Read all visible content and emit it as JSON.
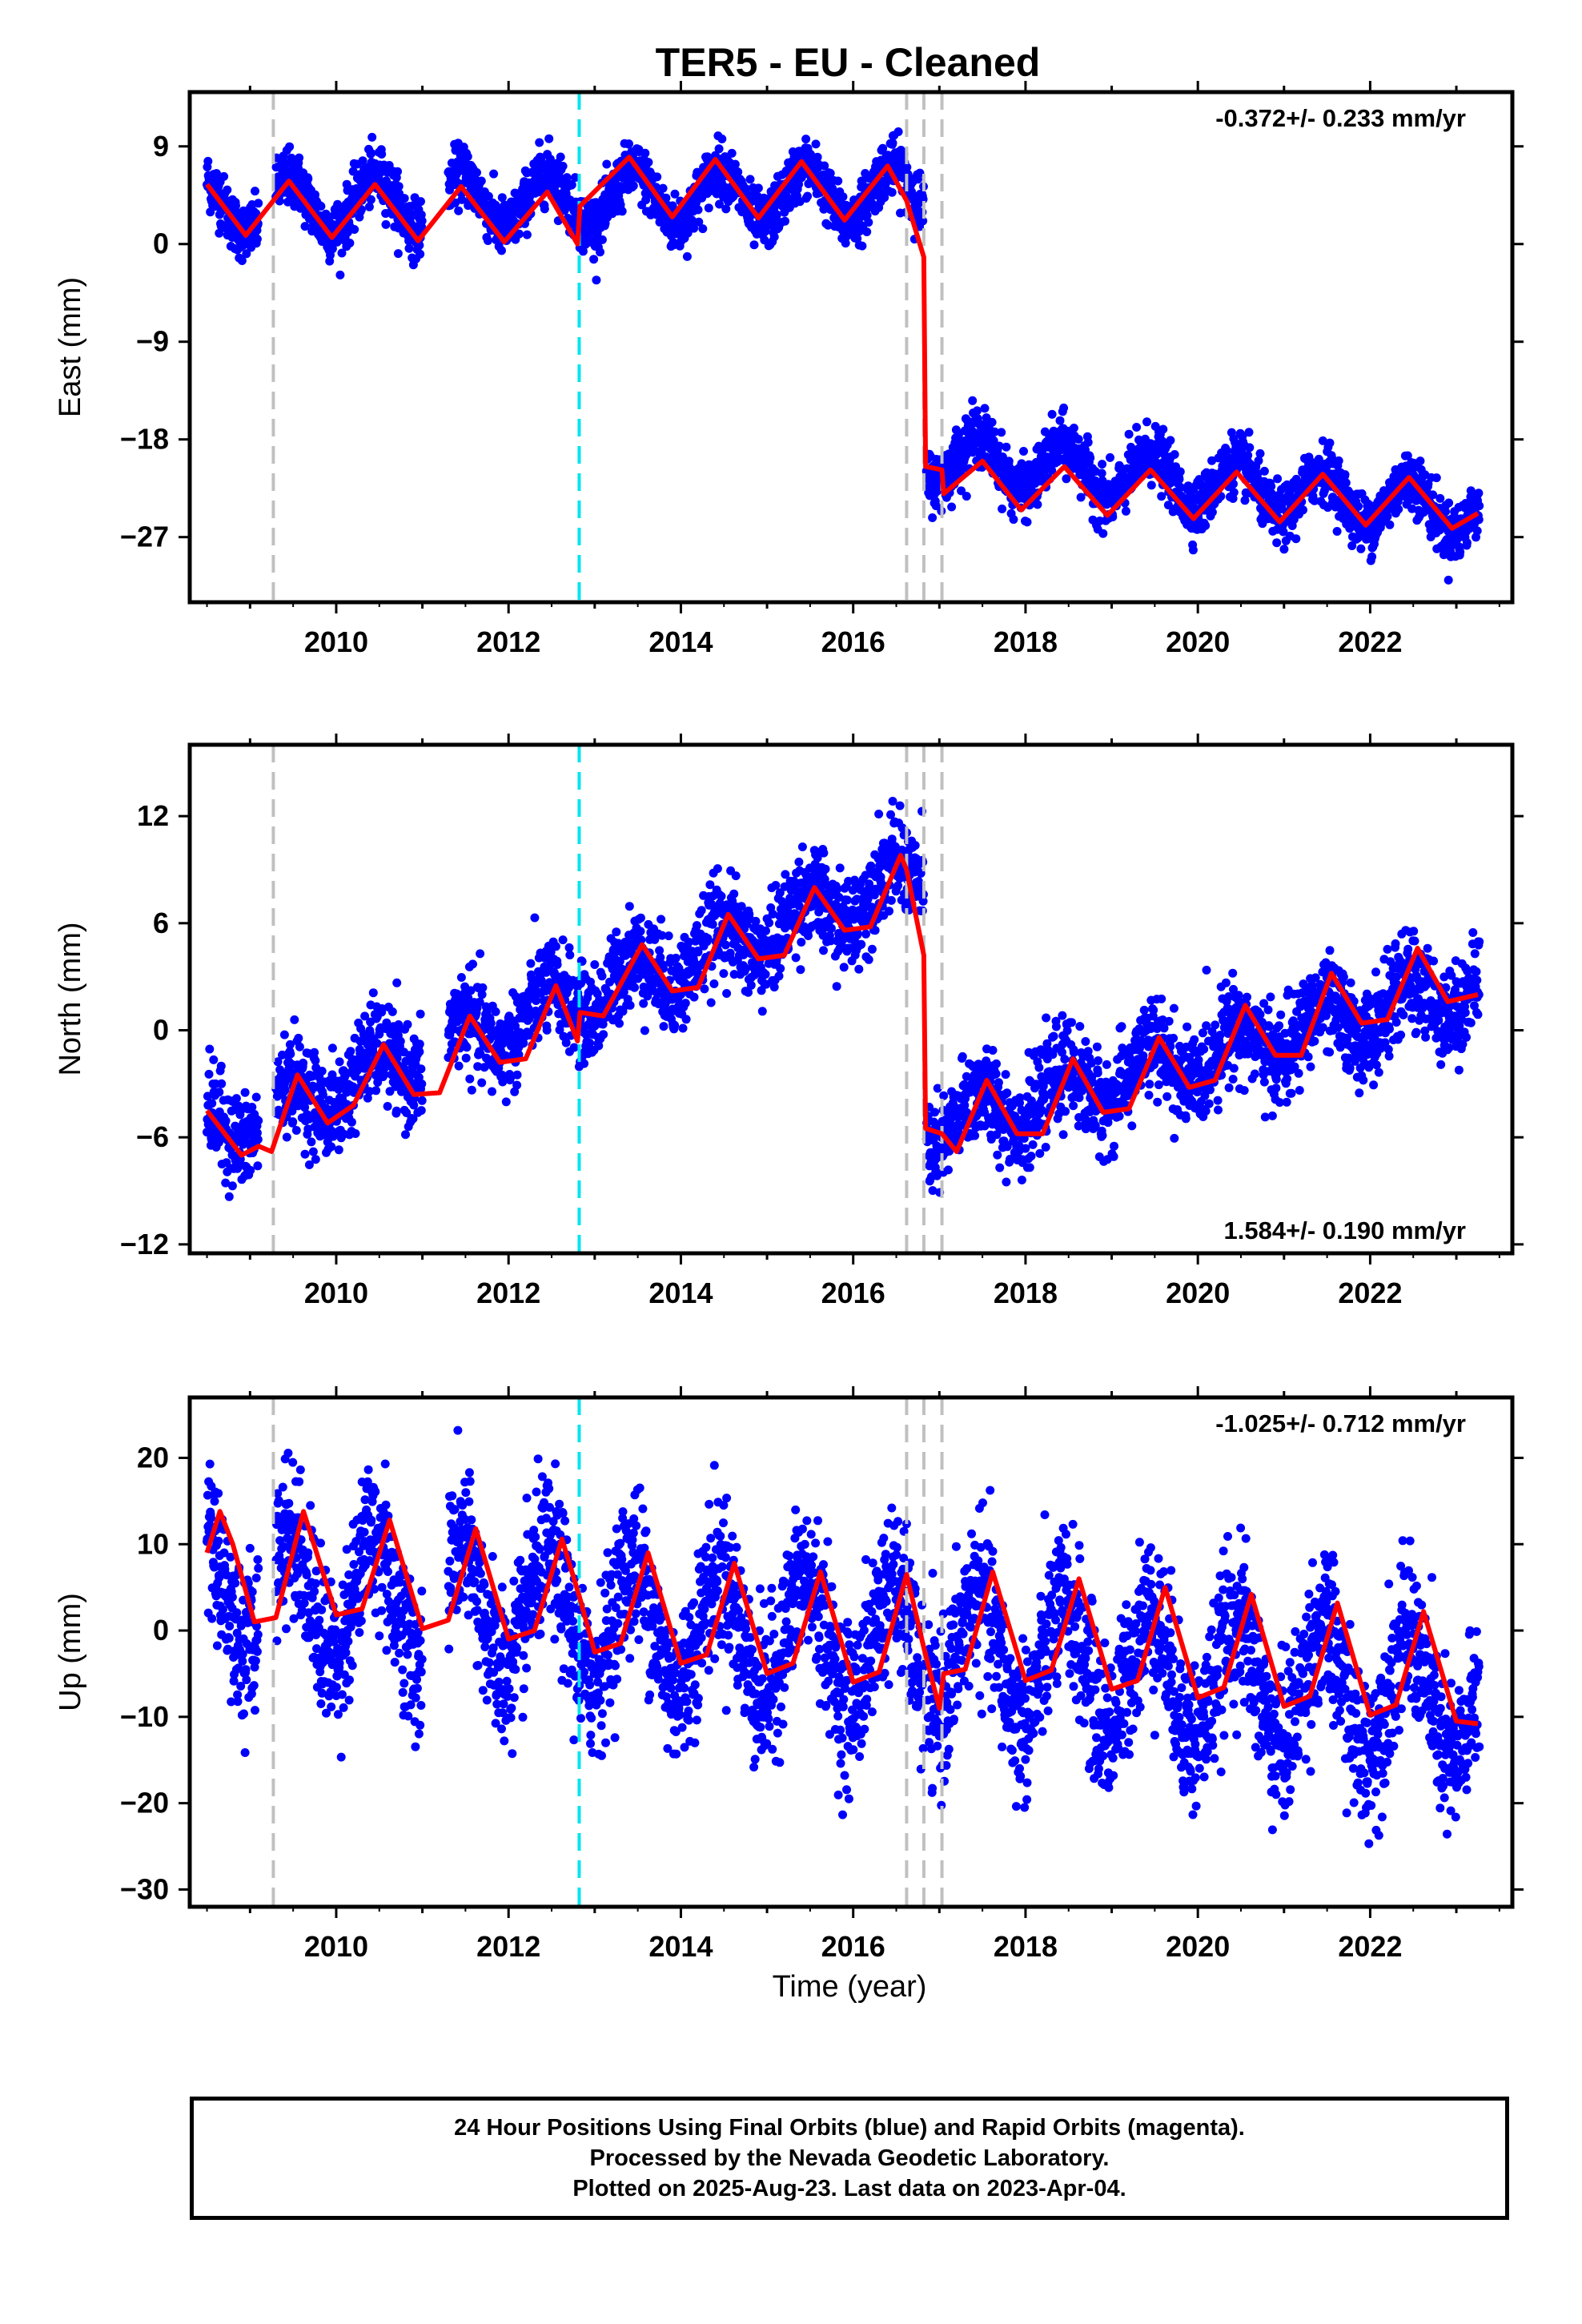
{
  "title": "TER5  - EU - Cleaned",
  "xlabel": "Time (year)",
  "footer": {
    "line1": "24 Hour Positions Using Final Orbits (blue) and Rapid Orbits (magenta).",
    "line2": "Processed by the Nevada Geodetic Laboratory.",
    "line3": "Plotted on 2025-Aug-23. Last data on 2023-Apr-04."
  },
  "colors": {
    "points": "#0000ff",
    "model": "#ff0000",
    "equipment_change": "#c0c0c0",
    "earthquake": "#00e5ee"
  },
  "chart_data": [
    {
      "type": "scatter",
      "ylabel": "East (mm)",
      "rate": "-0.372+/- 0.233 mm/yr",
      "rate_position": "top-right",
      "xlim": [
        2008.3,
        2023.65
      ],
      "ylim": [
        -33,
        14
      ],
      "xticks": [
        2010,
        2012,
        2014,
        2016,
        2018,
        2020,
        2022
      ],
      "yticks": [
        9,
        0,
        -9,
        -18,
        -27
      ],
      "ytick_labels": [
        "9",
        "0",
        "−9",
        "−18",
        "−27"
      ],
      "vlines_gray": [
        2009.27,
        2016.62,
        2016.82,
        2017.03
      ],
      "vlines_cyan": [
        2012.82
      ],
      "series": [
        {
          "segments": [
            [
              2008.5,
              2009.1
            ],
            [
              2009.3,
              2011.0
            ],
            [
              2011.3,
              2016.82
            ]
          ],
          "level_start": 3.5,
          "slope": 0.15,
          "amplitude": 2.5,
          "noise": 1.3
        },
        {
          "segments": [
            [
              2016.85,
              2023.27
            ]
          ],
          "level_start": -19.5,
          "slope": -0.8,
          "amplitude": 2.3,
          "noise": 1.3
        }
      ],
      "model": [
        {
          "x": 2008.5,
          "y": 5.5
        },
        {
          "x": 2008.95,
          "y": 0.8
        },
        {
          "x": 2009.45,
          "y": 5.8
        },
        {
          "x": 2009.95,
          "y": 0.6
        },
        {
          "x": 2010.45,
          "y": 5.5
        },
        {
          "x": 2010.95,
          "y": 0.3
        },
        {
          "x": 2011.45,
          "y": 5.3
        },
        {
          "x": 2011.95,
          "y": 0.2
        },
        {
          "x": 2012.45,
          "y": 4.8
        },
        {
          "x": 2012.8,
          "y": 0.0
        },
        {
          "x": 2012.83,
          "y": 3.5
        },
        {
          "x": 2013.4,
          "y": 8.0
        },
        {
          "x": 2013.9,
          "y": 2.5
        },
        {
          "x": 2014.4,
          "y": 7.8
        },
        {
          "x": 2014.9,
          "y": 2.4
        },
        {
          "x": 2015.4,
          "y": 7.6
        },
        {
          "x": 2015.9,
          "y": 2.2
        },
        {
          "x": 2016.4,
          "y": 7.2
        },
        {
          "x": 2016.62,
          "y": 4.0
        },
        {
          "x": 2016.82,
          "y": -1.2
        },
        {
          "x": 2016.84,
          "y": -20.5
        },
        {
          "x": 2017.03,
          "y": -20.8
        },
        {
          "x": 2017.05,
          "y": -23.0
        },
        {
          "x": 2017.5,
          "y": -20.0
        },
        {
          "x": 2017.95,
          "y": -24.5
        },
        {
          "x": 2018.45,
          "y": -20.5
        },
        {
          "x": 2018.95,
          "y": -25.0
        },
        {
          "x": 2019.45,
          "y": -20.8
        },
        {
          "x": 2019.95,
          "y": -25.3
        },
        {
          "x": 2020.45,
          "y": -21.0
        },
        {
          "x": 2020.95,
          "y": -25.6
        },
        {
          "x": 2021.45,
          "y": -21.2
        },
        {
          "x": 2021.95,
          "y": -25.9
        },
        {
          "x": 2022.45,
          "y": -21.5
        },
        {
          "x": 2022.95,
          "y": -26.2
        },
        {
          "x": 2023.25,
          "y": -24.8
        }
      ]
    },
    {
      "type": "scatter",
      "ylabel": "North (mm)",
      "rate": "1.584+/- 0.190 mm/yr",
      "rate_position": "bottom-right",
      "xlim": [
        2008.3,
        2023.65
      ],
      "ylim": [
        -12.5,
        16
      ],
      "xticks": [
        2010,
        2012,
        2014,
        2016,
        2018,
        2020,
        2022
      ],
      "yticks": [
        12,
        6,
        0,
        -6,
        -12
      ],
      "ytick_labels": [
        "12",
        "6",
        "0",
        "−6",
        "−12"
      ],
      "vlines_gray": [
        2009.27,
        2016.62,
        2016.82,
        2017.03
      ],
      "vlines_cyan": [
        2012.82
      ],
      "series": [
        {
          "segments": [
            [
              2008.5,
              2009.1
            ],
            [
              2009.3,
              2011.0
            ],
            [
              2011.3,
              2016.82
            ]
          ],
          "level_start": -5.8,
          "slope": 1.75,
          "amplitude": 1.3,
          "noise": 1.3
        },
        {
          "segments": [
            [
              2016.85,
              2023.27
            ]
          ],
          "level_start": -5.5,
          "slope": 1.25,
          "amplitude": 1.3,
          "noise": 1.3
        }
      ],
      "model": [
        {
          "x": 2008.5,
          "y": -4.5
        },
        {
          "x": 2008.9,
          "y": -7.0
        },
        {
          "x": 2009.1,
          "y": -6.5
        },
        {
          "x": 2009.25,
          "y": -6.8
        },
        {
          "x": 2009.55,
          "y": -2.5
        },
        {
          "x": 2009.9,
          "y": -5.2
        },
        {
          "x": 2010.2,
          "y": -4.2
        },
        {
          "x": 2010.55,
          "y": -0.8
        },
        {
          "x": 2010.9,
          "y": -3.6
        },
        {
          "x": 2011.2,
          "y": -3.5
        },
        {
          "x": 2011.55,
          "y": 0.8
        },
        {
          "x": 2011.9,
          "y": -1.8
        },
        {
          "x": 2012.2,
          "y": -1.6
        },
        {
          "x": 2012.55,
          "y": 2.5
        },
        {
          "x": 2012.8,
          "y": -0.6
        },
        {
          "x": 2012.83,
          "y": 1.0
        },
        {
          "x": 2013.1,
          "y": 0.8
        },
        {
          "x": 2013.55,
          "y": 4.8
        },
        {
          "x": 2013.9,
          "y": 2.2
        },
        {
          "x": 2014.2,
          "y": 2.4
        },
        {
          "x": 2014.55,
          "y": 6.5
        },
        {
          "x": 2014.9,
          "y": 4.0
        },
        {
          "x": 2015.2,
          "y": 4.2
        },
        {
          "x": 2015.55,
          "y": 8.0
        },
        {
          "x": 2015.9,
          "y": 5.6
        },
        {
          "x": 2016.2,
          "y": 5.8
        },
        {
          "x": 2016.55,
          "y": 9.8
        },
        {
          "x": 2016.62,
          "y": 9.0
        },
        {
          "x": 2016.82,
          "y": 4.2
        },
        {
          "x": 2016.84,
          "y": -5.5
        },
        {
          "x": 2017.03,
          "y": -5.8
        },
        {
          "x": 2017.2,
          "y": -6.8
        },
        {
          "x": 2017.55,
          "y": -2.8
        },
        {
          "x": 2017.9,
          "y": -5.8
        },
        {
          "x": 2018.2,
          "y": -5.8
        },
        {
          "x": 2018.55,
          "y": -1.6
        },
        {
          "x": 2018.9,
          "y": -4.6
        },
        {
          "x": 2019.2,
          "y": -4.4
        },
        {
          "x": 2019.55,
          "y": -0.4
        },
        {
          "x": 2019.9,
          "y": -3.2
        },
        {
          "x": 2020.2,
          "y": -2.8
        },
        {
          "x": 2020.55,
          "y": 1.4
        },
        {
          "x": 2020.9,
          "y": -1.4
        },
        {
          "x": 2021.2,
          "y": -1.4
        },
        {
          "x": 2021.55,
          "y": 3.2
        },
        {
          "x": 2021.9,
          "y": 0.4
        },
        {
          "x": 2022.2,
          "y": 0.6
        },
        {
          "x": 2022.55,
          "y": 4.6
        },
        {
          "x": 2022.9,
          "y": 1.6
        },
        {
          "x": 2023.25,
          "y": 2.0
        }
      ]
    },
    {
      "type": "scatter",
      "ylabel": "Up (mm)",
      "rate": "-1.025+/- 0.712 mm/yr",
      "rate_position": "top-right",
      "xlim": [
        2008.3,
        2023.65
      ],
      "ylim": [
        -32,
        27
      ],
      "xticks": [
        2010,
        2012,
        2014,
        2016,
        2018,
        2020,
        2022
      ],
      "yticks": [
        20,
        10,
        0,
        -10,
        -20,
        -30
      ],
      "ytick_labels": [
        "20",
        "10",
        "0",
        "−10",
        "−20",
        "−30"
      ],
      "vlines_gray": [
        2009.27,
        2016.62,
        2016.82,
        2017.03
      ],
      "vlines_cyan": [
        2012.82
      ],
      "series": [
        {
          "segments": [
            [
              2008.5,
              2009.1
            ],
            [
              2009.3,
              2011.0
            ],
            [
              2011.3,
              2016.82
            ],
            [
              2016.85,
              2023.27
            ]
          ],
          "level_start": 5.5,
          "slope": -0.95,
          "amplitude": 7.0,
          "noise": 4.5
        }
      ],
      "model": [
        {
          "x": 2008.5,
          "y": 9.0
        },
        {
          "x": 2008.65,
          "y": 13.8
        },
        {
          "x": 2008.8,
          "y": 10.0
        },
        {
          "x": 2009.05,
          "y": 1.0
        },
        {
          "x": 2009.3,
          "y": 1.5
        },
        {
          "x": 2009.62,
          "y": 13.8
        },
        {
          "x": 2010.0,
          "y": 1.8
        },
        {
          "x": 2010.3,
          "y": 2.5
        },
        {
          "x": 2010.62,
          "y": 12.8
        },
        {
          "x": 2011.0,
          "y": 0.2
        },
        {
          "x": 2011.3,
          "y": 1.2
        },
        {
          "x": 2011.62,
          "y": 11.8
        },
        {
          "x": 2012.0,
          "y": -1.0
        },
        {
          "x": 2012.3,
          "y": 0.0
        },
        {
          "x": 2012.62,
          "y": 10.6
        },
        {
          "x": 2012.82,
          "y": 4.0
        },
        {
          "x": 2013.0,
          "y": -2.5
        },
        {
          "x": 2013.3,
          "y": -1.5
        },
        {
          "x": 2013.62,
          "y": 9.0
        },
        {
          "x": 2014.0,
          "y": -3.8
        },
        {
          "x": 2014.3,
          "y": -2.8
        },
        {
          "x": 2014.62,
          "y": 7.8
        },
        {
          "x": 2015.0,
          "y": -5.0
        },
        {
          "x": 2015.3,
          "y": -3.8
        },
        {
          "x": 2015.62,
          "y": 6.8
        },
        {
          "x": 2016.0,
          "y": -6.0
        },
        {
          "x": 2016.3,
          "y": -4.8
        },
        {
          "x": 2016.62,
          "y": 6.5
        },
        {
          "x": 2016.82,
          "y": -2.0
        },
        {
          "x": 2017.0,
          "y": -9.0
        },
        {
          "x": 2017.05,
          "y": -5.0
        },
        {
          "x": 2017.3,
          "y": -4.5
        },
        {
          "x": 2017.62,
          "y": 6.8
        },
        {
          "x": 2018.0,
          "y": -5.8
        },
        {
          "x": 2018.3,
          "y": -4.6
        },
        {
          "x": 2018.62,
          "y": 6.0
        },
        {
          "x": 2019.0,
          "y": -6.8
        },
        {
          "x": 2019.3,
          "y": -5.8
        },
        {
          "x": 2019.62,
          "y": 5.0
        },
        {
          "x": 2020.0,
          "y": -7.8
        },
        {
          "x": 2020.3,
          "y": -6.6
        },
        {
          "x": 2020.62,
          "y": 4.2
        },
        {
          "x": 2021.0,
          "y": -8.8
        },
        {
          "x": 2021.3,
          "y": -7.6
        },
        {
          "x": 2021.62,
          "y": 3.2
        },
        {
          "x": 2022.0,
          "y": -9.8
        },
        {
          "x": 2022.3,
          "y": -8.6
        },
        {
          "x": 2022.62,
          "y": 2.2
        },
        {
          "x": 2023.0,
          "y": -10.5
        },
        {
          "x": 2023.25,
          "y": -10.8
        }
      ]
    }
  ]
}
